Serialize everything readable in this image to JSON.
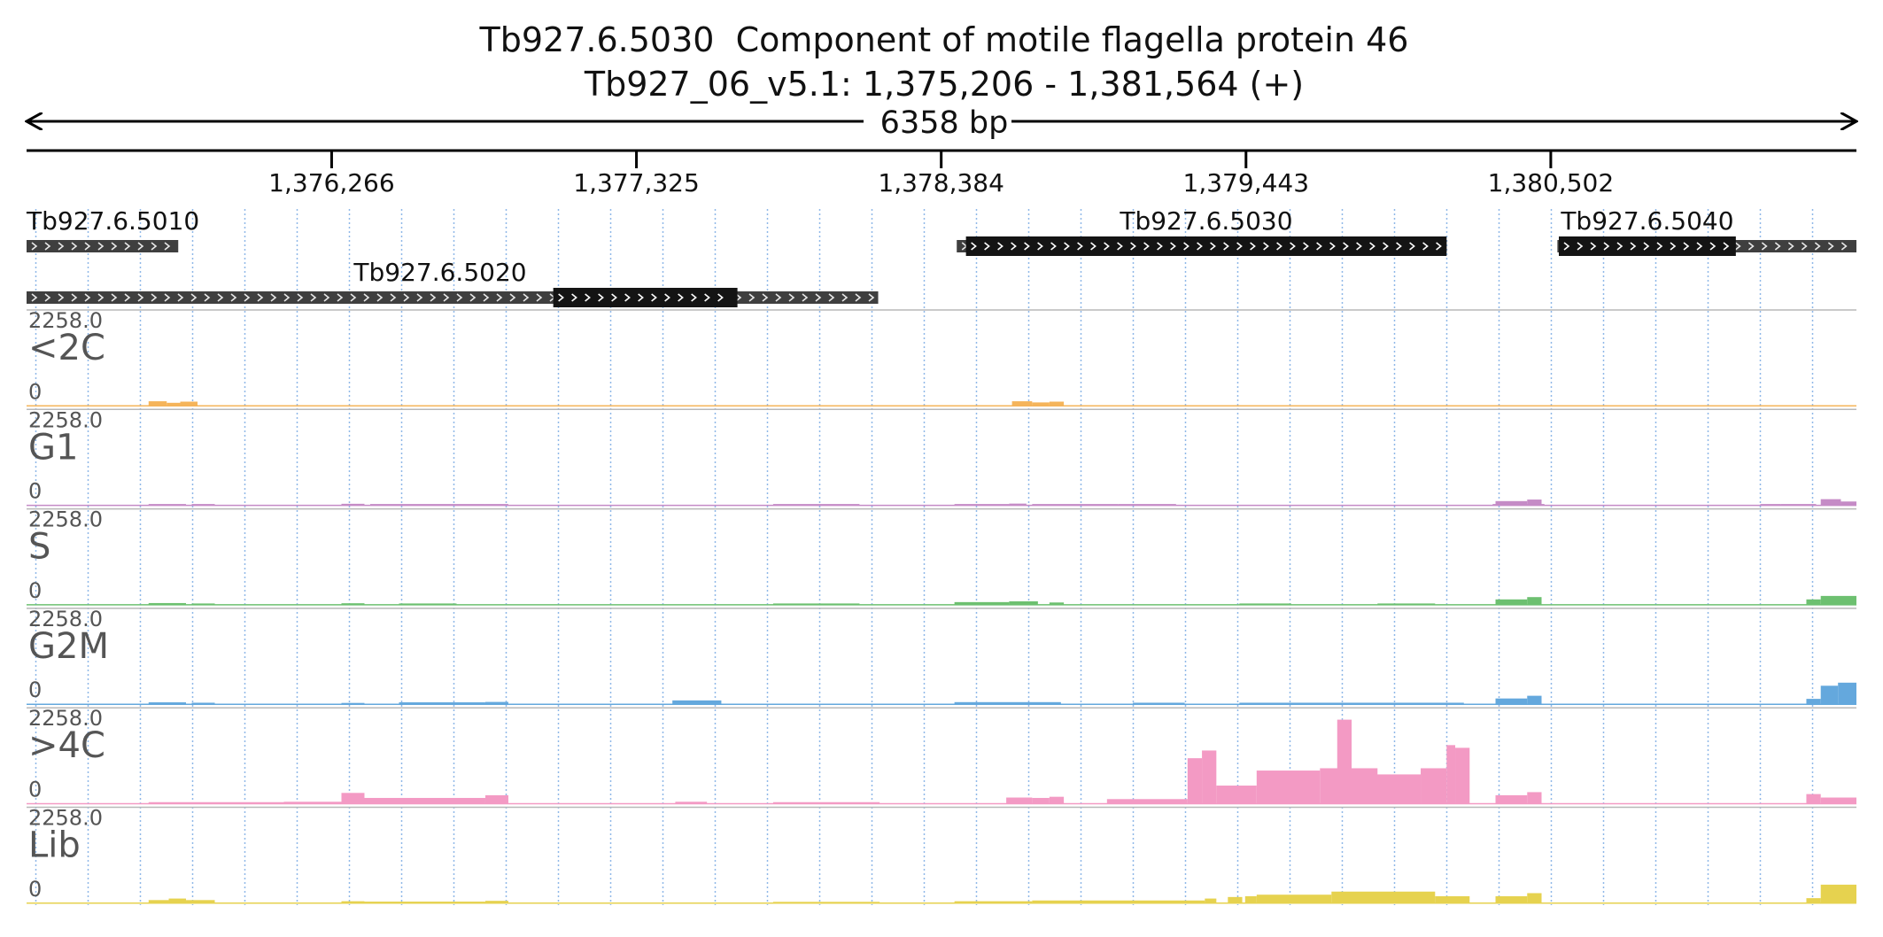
{
  "header": {
    "title": "Tb927.6.5030  Component of motile flagella protein 46",
    "location": "Tb927_06_v5.1: 1,375,206 - 1,381,564 (+)",
    "span_label": "6358 bp"
  },
  "region": {
    "chrom": "Tb927_06_v5.1",
    "start": 1375206,
    "end": 1381564
  },
  "ruler": {
    "ticks": [
      {
        "pos": 1376266,
        "label": "1,376,266"
      },
      {
        "pos": 1377325,
        "label": "1,377,325"
      },
      {
        "pos": 1378384,
        "label": "1,378,384"
      },
      {
        "pos": 1379443,
        "label": "1,379,443"
      },
      {
        "pos": 1380502,
        "label": "1,380,502"
      }
    ]
  },
  "genes": [
    {
      "name": "Tb927.6.5010",
      "row": 0,
      "start": 1375206,
      "end": 1375733,
      "cds": [],
      "label_anchor": "start"
    },
    {
      "name": "Tb927.6.5020",
      "row": 1,
      "start": 1375206,
      "end": 1378165,
      "cds": [
        1377036,
        1377676
      ],
      "label_anchor": "middle"
    },
    {
      "name": "Tb927.6.5030",
      "row": 0,
      "start": 1378438,
      "end": 1380140,
      "cds": [
        1378470,
        1380140
      ],
      "label_anchor": "middle"
    },
    {
      "name": "Tb927.6.5040",
      "row": 0,
      "start": 1380525,
      "end": 1381564,
      "cds": [
        1380530,
        1381145
      ],
      "label_anchor": "middle"
    }
  ],
  "tracks": [
    {
      "name": "<2C",
      "max_label": "2258.0",
      "min_label": "0",
      "color": "#f5b45a",
      "bars": [
        [
          1375630,
          1375693,
          120
        ],
        [
          1375693,
          1375740,
          80
        ],
        [
          1375740,
          1375800,
          110
        ],
        [
          1378630,
          1378700,
          120
        ],
        [
          1378700,
          1378760,
          90
        ],
        [
          1378760,
          1378810,
          110
        ]
      ]
    },
    {
      "name": "G1",
      "max_label": "2258.0",
      "min_label": "0",
      "color": "#c58bc6",
      "bars": [
        [
          1375630,
          1375760,
          25
        ],
        [
          1375780,
          1375860,
          20
        ],
        [
          1376300,
          1376380,
          40
        ],
        [
          1376400,
          1376800,
          15
        ],
        [
          1376800,
          1376880,
          25
        ],
        [
          1377800,
          1378100,
          15
        ],
        [
          1378430,
          1378620,
          30
        ],
        [
          1378620,
          1378680,
          45
        ],
        [
          1378700,
          1379000,
          15
        ],
        [
          1379000,
          1379200,
          12
        ],
        [
          1380300,
          1380480,
          15
        ],
        [
          1380310,
          1380420,
          110
        ],
        [
          1380420,
          1380470,
          150
        ],
        [
          1381230,
          1381300,
          20
        ],
        [
          1381300,
          1381424,
          20
        ],
        [
          1381440,
          1381510,
          160
        ],
        [
          1381510,
          1381564,
          100
        ]
      ]
    },
    {
      "name": "S",
      "max_label": "2258.0",
      "min_label": "0",
      "color": "#6dc070",
      "bars": [
        [
          1375630,
          1375760,
          45
        ],
        [
          1375780,
          1375860,
          30
        ],
        [
          1376300,
          1376380,
          40
        ],
        [
          1376500,
          1376700,
          30
        ],
        [
          1377800,
          1378100,
          15
        ],
        [
          1378430,
          1378620,
          70
        ],
        [
          1378620,
          1378720,
          90
        ],
        [
          1378760,
          1378810,
          60
        ],
        [
          1379420,
          1379600,
          20
        ],
        [
          1379900,
          1380100,
          15
        ],
        [
          1380310,
          1380420,
          140
        ],
        [
          1380420,
          1380470,
          200
        ],
        [
          1381390,
          1381440,
          140
        ],
        [
          1381440,
          1381564,
          230
        ]
      ]
    },
    {
      "name": "G2M",
      "max_label": "2258.0",
      "min_label": "0",
      "color": "#64a8dd",
      "bars": [
        [
          1375630,
          1375760,
          50
        ],
        [
          1375780,
          1375860,
          40
        ],
        [
          1376300,
          1376380,
          30
        ],
        [
          1376500,
          1376800,
          50
        ],
        [
          1376800,
          1376880,
          60
        ],
        [
          1377450,
          1377620,
          100
        ],
        [
          1378430,
          1378800,
          55
        ],
        [
          1379050,
          1379230,
          40
        ],
        [
          1379420,
          1380200,
          40
        ],
        [
          1380310,
          1380420,
          150
        ],
        [
          1380420,
          1380470,
          220
        ],
        [
          1381390,
          1381440,
          140
        ],
        [
          1381440,
          1381500,
          480
        ],
        [
          1381500,
          1381564,
          560
        ]
      ]
    },
    {
      "name": ">4C",
      "max_label": "2258.0",
      "min_label": "0",
      "color": "#f39ac4",
      "bars": [
        [
          1375630,
          1376100,
          40
        ],
        [
          1376100,
          1376300,
          50
        ],
        [
          1376300,
          1376380,
          280
        ],
        [
          1376380,
          1376800,
          150
        ],
        [
          1376800,
          1376880,
          220
        ],
        [
          1377460,
          1377570,
          50
        ],
        [
          1377800,
          1378170,
          40
        ],
        [
          1378610,
          1378700,
          160
        ],
        [
          1378700,
          1378760,
          150
        ],
        [
          1378760,
          1378810,
          180
        ],
        [
          1378960,
          1379240,
          120
        ],
        [
          1379240,
          1379290,
          1180
        ],
        [
          1379290,
          1379340,
          1380
        ],
        [
          1379340,
          1379480,
          470
        ],
        [
          1379480,
          1379700,
          860
        ],
        [
          1379700,
          1379900,
          920
        ],
        [
          1379760,
          1379810,
          2180
        ],
        [
          1379810,
          1380050,
          760
        ],
        [
          1380050,
          1380140,
          920
        ],
        [
          1380140,
          1380170,
          1520
        ],
        [
          1380170,
          1380220,
          1450
        ],
        [
          1380310,
          1380420,
          220
        ],
        [
          1380420,
          1380470,
          300
        ],
        [
          1381390,
          1381440,
          250
        ],
        [
          1381440,
          1381564,
          160
        ]
      ]
    },
    {
      "name": "Lib",
      "max_label": "2258.0",
      "min_label": "0",
      "color": "#e6d24f",
      "bars": [
        [
          1375630,
          1375700,
          80
        ],
        [
          1375700,
          1375760,
          120
        ],
        [
          1375760,
          1375860,
          80
        ],
        [
          1376300,
          1376380,
          50
        ],
        [
          1376380,
          1376800,
          40
        ],
        [
          1376800,
          1376880,
          60
        ],
        [
          1377800,
          1378170,
          30
        ],
        [
          1378430,
          1378700,
          50
        ],
        [
          1378700,
          1379300,
          70
        ],
        [
          1379300,
          1379340,
          120
        ],
        [
          1379380,
          1379430,
          160
        ],
        [
          1379440,
          1379480,
          180
        ],
        [
          1379480,
          1379740,
          220
        ],
        [
          1379740,
          1380100,
          300
        ],
        [
          1380100,
          1380220,
          180
        ],
        [
          1380310,
          1380420,
          180
        ],
        [
          1380420,
          1380470,
          260
        ],
        [
          1381390,
          1381440,
          130
        ],
        [
          1381440,
          1381564,
          480
        ]
      ]
    }
  ]
}
